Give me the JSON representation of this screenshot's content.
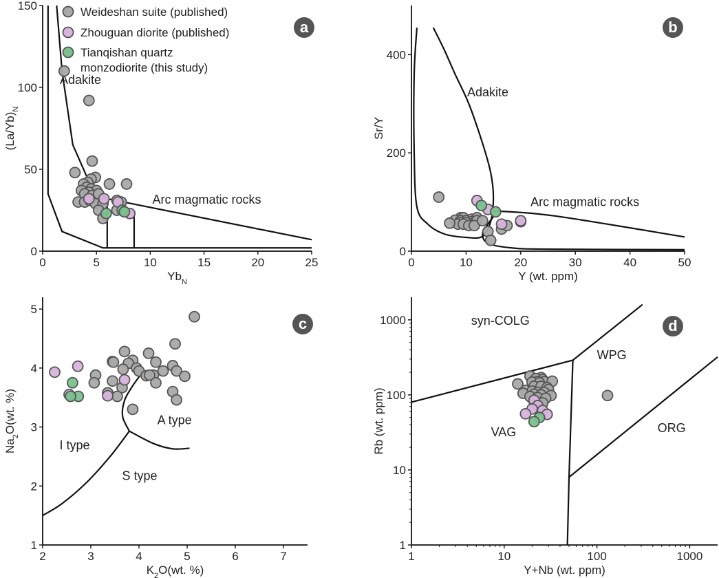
{
  "colors": {
    "grey_fill": "#a9a9a9",
    "pink_fill": "#d8b4dc",
    "green_fill": "#7bc08d",
    "stroke": "#555555",
    "badge": "#555555"
  },
  "legend": {
    "items": [
      {
        "label": "Weideshan suite (published)",
        "color": "#a9a9a9"
      },
      {
        "label": "Zhouguan diorite (published)",
        "color": "#d8b4dc"
      },
      {
        "label": "Tianqishan quartz",
        "color": "#7bc08d"
      }
    ],
    "green_line2": "monzodiorite (this study)"
  },
  "chart_data": [
    {
      "panel": "a",
      "type": "scatter",
      "xlabel": "Yb",
      "xlabel_sub": "N",
      "ylabel": "(La/Yb)",
      "ylabel_sub": "N",
      "xlim": [
        0,
        25
      ],
      "ylim": [
        0,
        150
      ],
      "xticks": [
        0,
        5,
        10,
        15,
        20,
        25
      ],
      "yticks": [
        0,
        50,
        100,
        150
      ],
      "regions": [
        {
          "label": "Adakite",
          "x": 1.6,
          "y": 102
        },
        {
          "label": "Arc magmatic rocks",
          "x": 10.2,
          "y": 29
        }
      ],
      "boundaries": [
        [
          [
            0.5,
            150
          ],
          [
            0.5,
            35
          ],
          [
            1.8,
            12
          ],
          [
            5.6,
            2
          ],
          [
            25,
            2
          ]
        ],
        [
          [
            1.3,
            150
          ],
          [
            1.8,
            110
          ],
          [
            2.8,
            65
          ],
          [
            4.6,
            38
          ],
          [
            6,
            32
          ],
          [
            25,
            7
          ]
        ],
        [
          [
            6,
            2
          ],
          [
            6,
            32
          ]
        ],
        [
          [
            8.5,
            2
          ],
          [
            8.5,
            24
          ],
          [
            7,
            28
          ]
        ]
      ],
      "series": [
        {
          "name": "Weideshan suite (published)",
          "color": "#a9a9a9",
          "points": [
            [
              2,
              110
            ],
            [
              4.3,
              92
            ],
            [
              4.6,
              55
            ],
            [
              3,
              48
            ],
            [
              4.9,
              45
            ],
            [
              4.5,
              44
            ],
            [
              4.2,
              42
            ],
            [
              3.8,
              41
            ],
            [
              4.1,
              39
            ],
            [
              4.5,
              38
            ],
            [
              5,
              37
            ],
            [
              3.6,
              37
            ],
            [
              4.3,
              36
            ],
            [
              3.9,
              35
            ],
            [
              4.6,
              34
            ],
            [
              5.2,
              35
            ],
            [
              6.2,
              41
            ],
            [
              7.8,
              41
            ],
            [
              3.3,
              30
            ],
            [
              3.9,
              30
            ],
            [
              4.4,
              31
            ],
            [
              4.9,
              29
            ],
            [
              5.6,
              29
            ],
            [
              5.2,
              25
            ],
            [
              6.9,
              25
            ],
            [
              5.6,
              20
            ],
            [
              7.3,
              30
            ],
            [
              6.9,
              31
            ]
          ]
        },
        {
          "name": "Zhouguan diorite (published)",
          "color": "#d8b4dc",
          "points": [
            [
              4.3,
              32
            ],
            [
              5.7,
              32
            ],
            [
              7,
              30
            ],
            [
              8.1,
              23
            ]
          ]
        },
        {
          "name": "Tianqishan quartz monzodiorite (this study)",
          "color": "#7bc08d",
          "points": [
            [
              5.9,
              23
            ],
            [
              7.4,
              25
            ],
            [
              7.6,
              24
            ]
          ]
        }
      ]
    },
    {
      "panel": "b",
      "type": "scatter",
      "xlabel": "Y (wt. ppm)",
      "ylabel": "Sr/Y",
      "xlim": [
        0,
        50
      ],
      "ylim": [
        0,
        500
      ],
      "xticks": [
        0,
        10,
        20,
        30,
        40,
        50
      ],
      "yticks": [
        0,
        200,
        400
      ],
      "regions": [
        {
          "label": "Adakite",
          "x": 10.2,
          "y": 315
        },
        {
          "label": "Arc magmatic rocks",
          "x": 21.8,
          "y": 92
        }
      ],
      "boundaries": [
        [
          [
            1,
            455
          ],
          [
            0.5,
            360
          ],
          [
            0.5,
            200
          ],
          [
            1,
            90
          ],
          [
            3,
            55
          ],
          [
            6,
            35
          ],
          [
            10,
            28
          ],
          [
            13,
            30
          ],
          [
            14.5,
            60
          ],
          [
            15,
            110
          ],
          [
            14.5,
            160
          ],
          [
            13,
            220
          ],
          [
            10.5,
            300
          ],
          [
            8,
            360
          ],
          [
            6,
            410
          ],
          [
            4,
            455
          ]
        ],
        [
          [
            15,
            82
          ],
          [
            26,
            72
          ],
          [
            50,
            29
          ]
        ],
        [
          [
            15,
            70
          ],
          [
            14,
            55
          ],
          [
            13,
            35
          ],
          [
            14,
            16
          ],
          [
            18,
            7
          ],
          [
            25,
            4
          ],
          [
            50,
            3
          ]
        ]
      ],
      "series": [
        {
          "name": "Weideshan suite (published)",
          "color": "#a9a9a9",
          "points": [
            [
              5,
              110
            ],
            [
              9,
              68
            ],
            [
              9.5,
              68
            ],
            [
              11,
              65
            ],
            [
              12,
              68
            ],
            [
              8,
              63
            ],
            [
              9,
              62
            ],
            [
              10,
              62
            ],
            [
              11,
              60
            ],
            [
              9,
              58
            ],
            [
              10,
              58
            ],
            [
              11.5,
              58
            ],
            [
              12,
              62
            ],
            [
              8.5,
              55
            ],
            [
              9.5,
              55
            ],
            [
              7,
              57
            ],
            [
              10.5,
              52
            ],
            [
              11.5,
              52
            ],
            [
              13,
              62
            ],
            [
              14,
              40
            ],
            [
              16.5,
              45
            ],
            [
              17.5,
              52
            ],
            [
              14.5,
              22
            ]
          ]
        },
        {
          "name": "Zhouguan diorite (published)",
          "color": "#d8b4dc",
          "points": [
            [
              12,
              103
            ],
            [
              14,
              85
            ],
            [
              16.5,
              55
            ],
            [
              20,
              60
            ],
            [
              20,
              62
            ]
          ]
        },
        {
          "name": "Tianqishan quartz monzodiorite (this study)",
          "color": "#7bc08d",
          "points": [
            [
              12.8,
              93
            ],
            [
              15.4,
              80
            ]
          ]
        }
      ]
    },
    {
      "panel": "c",
      "type": "scatter",
      "xlabel": "K",
      "xlabel_sub": "2",
      "xlabel_rest": "O(wt. %)",
      "ylabel": "Na",
      "ylabel_sub": "2",
      "ylabel_rest": "O(wt. %)",
      "xlim": [
        2,
        7.5
      ],
      "ylim": [
        1,
        5.2
      ],
      "xticks": [
        2,
        3,
        4,
        5,
        6,
        7
      ],
      "yticks": [
        1,
        2,
        3,
        4,
        5
      ],
      "regions": [
        {
          "label": "I type",
          "x": 2.35,
          "y": 2.62
        },
        {
          "label": "A type",
          "x": 4.38,
          "y": 3.05
        },
        {
          "label": "S type",
          "x": 3.65,
          "y": 2.1
        }
      ],
      "boundaries": [
        [
          [
            2,
            1.5
          ],
          [
            2.4,
            1.7
          ],
          [
            2.9,
            2.05
          ],
          [
            3.4,
            2.5
          ],
          [
            3.8,
            2.93
          ]
        ],
        [
          [
            3.8,
            2.93
          ],
          [
            4.3,
            2.72
          ],
          [
            4.7,
            2.63
          ],
          [
            5.05,
            2.64
          ]
        ],
        [
          [
            3.8,
            2.93
          ],
          [
            3.66,
            3.18
          ],
          [
            3.7,
            3.45
          ],
          [
            3.87,
            3.7
          ],
          [
            4.05,
            3.9
          ]
        ]
      ],
      "series": [
        {
          "name": "Weideshan suite (published)",
          "color": "#a9a9a9",
          "points": [
            [
              5.15,
              4.87
            ],
            [
              4.75,
              4.41
            ],
            [
              3.7,
              4.28
            ],
            [
              4.2,
              4.25
            ],
            [
              3.45,
              4.11
            ],
            [
              3.47,
              4.1
            ],
            [
              3.87,
              4.13
            ],
            [
              3.78,
              4.08
            ],
            [
              4.35,
              4.1
            ],
            [
              4.7,
              4.04
            ],
            [
              3.95,
              4.0
            ],
            [
              4.5,
              3.95
            ],
            [
              4.0,
              3.95
            ],
            [
              4.78,
              3.95
            ],
            [
              3.67,
              3.98
            ],
            [
              3.1,
              3.88
            ],
            [
              4.3,
              3.88
            ],
            [
              4.15,
              3.87
            ],
            [
              4.22,
              3.88
            ],
            [
              4.95,
              3.86
            ],
            [
              3.45,
              3.78
            ],
            [
              3.07,
              3.75
            ],
            [
              4.35,
              3.75
            ],
            [
              3.65,
              3.67
            ],
            [
              4.7,
              3.6
            ],
            [
              3.35,
              3.58
            ],
            [
              3.55,
              3.52
            ],
            [
              4.78,
              3.46
            ],
            [
              3.87,
              3.3
            ]
          ]
        },
        {
          "name": "Zhouguan diorite (published)",
          "color": "#d8b4dc",
          "points": [
            [
              2.25,
              3.93
            ],
            [
              2.73,
              4.03
            ],
            [
              3.7,
              3.8
            ],
            [
              3.35,
              3.53
            ],
            [
              2.55,
              3.55
            ]
          ]
        },
        {
          "name": "Tianqishan quartz monzodiorite (this study)",
          "color": "#7bc08d",
          "points": [
            [
              2.62,
              3.75
            ],
            [
              2.74,
              3.52
            ],
            [
              2.58,
              3.52
            ]
          ]
        }
      ]
    },
    {
      "panel": "d",
      "type": "scatter",
      "log": true,
      "xlabel": "Y+Nb (wt. ppm)",
      "ylabel": "Rb (wt. ppm)",
      "xlim": [
        1,
        2000
      ],
      "ylim": [
        1,
        2000
      ],
      "xticks": [
        1,
        10,
        100,
        1000
      ],
      "yticks": [
        1,
        10,
        100,
        1000
      ],
      "regions": [
        {
          "label": "syn-COLG",
          "x": 4.4,
          "y": 860
        },
        {
          "label": "WPG",
          "x": 100,
          "y": 300
        },
        {
          "label": "VAG",
          "x": 7.2,
          "y": 28
        },
        {
          "label": "ORG",
          "x": 450,
          "y": 32
        }
      ],
      "boundaries": [
        [
          [
            1,
            80
          ],
          [
            55,
            290
          ],
          [
            310,
            1600
          ]
        ],
        [
          [
            55,
            290
          ],
          [
            50,
            8
          ],
          [
            48,
            1
          ]
        ],
        [
          [
            50,
            8
          ],
          [
            2000,
            320
          ]
        ]
      ],
      "series": [
        {
          "name": "Weideshan suite (published)",
          "color": "#a9a9a9",
          "points": [
            [
              130,
              98
            ],
            [
              19,
              178
            ],
            [
              25,
              170
            ],
            [
              22,
              165
            ],
            [
              26,
              160
            ],
            [
              23,
              150
            ],
            [
              20,
              148
            ],
            [
              27,
              150
            ],
            [
              24,
              145
            ],
            [
              33,
              152
            ],
            [
              14,
              140
            ],
            [
              21,
              130
            ],
            [
              25,
              130
            ],
            [
              29,
              125
            ],
            [
              17,
              115
            ],
            [
              20,
              112
            ],
            [
              30,
              118
            ],
            [
              23,
              108
            ],
            [
              27,
              108
            ],
            [
              16,
              105
            ],
            [
              21,
              102
            ],
            [
              25,
              100
            ],
            [
              32,
              98
            ],
            [
              19,
              95
            ],
            [
              23,
              92
            ],
            [
              28,
              90
            ],
            [
              21,
              82
            ],
            [
              26,
              78
            ]
          ]
        },
        {
          "name": "Zhouguan diorite (published)",
          "color": "#d8b4dc",
          "points": [
            [
              21,
              85
            ],
            [
              23,
              72
            ],
            [
              20,
              65
            ],
            [
              26,
              62
            ],
            [
              17,
              56
            ],
            [
              29,
              55
            ]
          ]
        },
        {
          "name": "Tianqishan quartz monzodiorite (this study)",
          "color": "#7bc08d",
          "points": [
            [
              24,
              50
            ],
            [
              21,
              44
            ]
          ]
        }
      ]
    }
  ]
}
